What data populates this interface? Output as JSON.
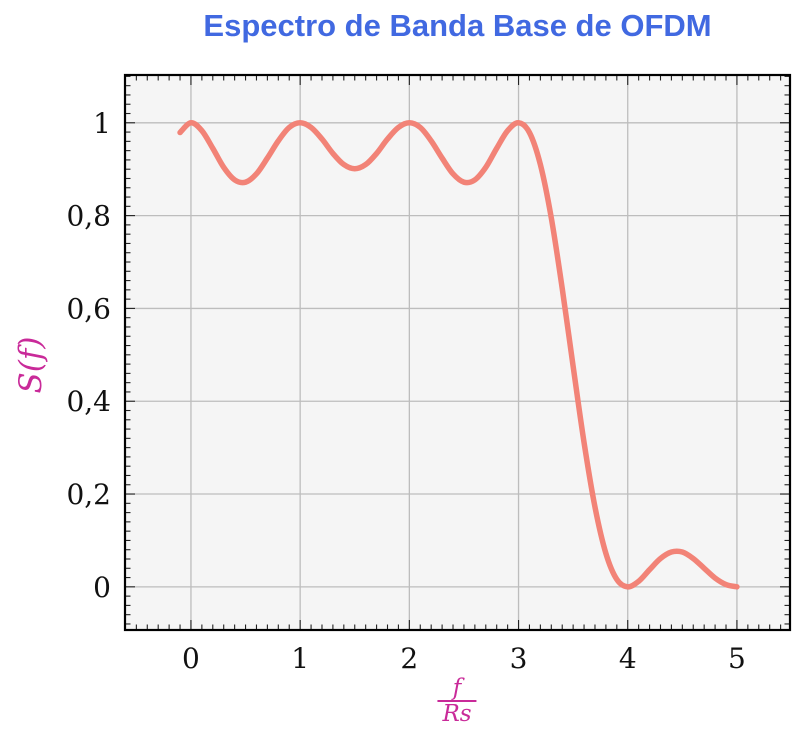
{
  "title": {
    "text": "Espectro de Banda Base de OFDM"
  },
  "axes": {
    "y_label": "S(f)",
    "x_label_numerator": "f",
    "x_label_denominator": "Rs",
    "x_tick_labels": [
      "0",
      "1",
      "2",
      "3",
      "4",
      "5"
    ],
    "y_tick_labels": [
      "0",
      "0,2",
      "0,4",
      "0,6",
      "0,8",
      "1"
    ]
  },
  "chart_data": {
    "type": "line",
    "title": "Espectro de Banda Base de OFDM",
    "xlabel": "f/Rs",
    "ylabel": "S(f)",
    "xlim": [
      -0.604,
      5.486
    ],
    "ylim": [
      -0.093,
      1.103
    ],
    "x_major_ticks": [
      0,
      1,
      2,
      3,
      4,
      5
    ],
    "y_major_ticks": [
      0,
      0.2,
      0.4,
      0.6,
      0.8,
      1.0
    ],
    "x_minor_step": 0.1,
    "y_minor_step": 0.02,
    "grid": true,
    "legend": "none",
    "colors": {
      "title": "#4169E1",
      "axis_label": "#C92A99",
      "line": "#F28377",
      "grid": "#BDBDBD",
      "plot_background": "#F5F5F5",
      "tick_label": "#111111",
      "frame": "#000000"
    },
    "series": [
      {
        "name": "S(f)",
        "x": [
          -0.1,
          0.0,
          0.1,
          0.2,
          0.3,
          0.4,
          0.5,
          0.6,
          0.7,
          0.8,
          0.9,
          1.0,
          1.1,
          1.2,
          1.3,
          1.4,
          1.5,
          1.6,
          1.7,
          1.8,
          1.9,
          2.0,
          2.1,
          2.2,
          2.3,
          2.4,
          2.5,
          2.6,
          2.7,
          2.8,
          2.9,
          3.0,
          3.1,
          3.2,
          3.3,
          3.4,
          3.5,
          3.6,
          3.7,
          3.8,
          3.9,
          4.0,
          4.1,
          4.2,
          4.3,
          4.4,
          4.5,
          4.6,
          4.7,
          4.8,
          4.9,
          5.0
        ],
        "y": [
          0.979,
          1.0,
          0.983,
          0.945,
          0.904,
          0.877,
          0.872,
          0.89,
          0.924,
          0.961,
          0.99,
          1.0,
          0.99,
          0.965,
          0.934,
          0.91,
          0.901,
          0.91,
          0.934,
          0.965,
          0.99,
          1.0,
          0.99,
          0.961,
          0.924,
          0.89,
          0.872,
          0.877,
          0.904,
          0.945,
          0.983,
          1.0,
          0.979,
          0.91,
          0.795,
          0.643,
          0.475,
          0.311,
          0.172,
          0.072,
          0.016,
          0.0,
          0.012,
          0.037,
          0.061,
          0.075,
          0.075,
          0.061,
          0.04,
          0.019,
          0.005,
          0.0
        ]
      }
    ]
  }
}
